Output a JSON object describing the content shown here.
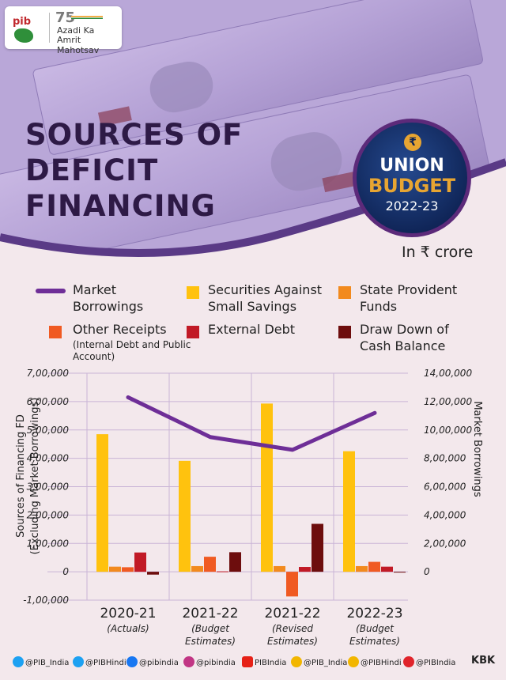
{
  "header": {
    "pib_logo": "pib",
    "amrit_number": "75",
    "amrit_line1": "Azadi Ka",
    "amrit_line2": "Amrit Mahotsav"
  },
  "title": {
    "line1": "SOURCES OF",
    "line2": "DEFICIT",
    "line3": "FINANCING"
  },
  "badge": {
    "icon": "rupee-icon",
    "line1": "UNION",
    "line2": "BUDGET",
    "line3": "2022-23"
  },
  "unit": "In ₹ crore",
  "legend": [
    {
      "label": "Market Borrowings",
      "note": "",
      "color": "#6e2e97",
      "kind": "line"
    },
    {
      "label": "Securities Against Small Savings",
      "note": "",
      "color": "#ffc20e",
      "kind": "box"
    },
    {
      "label": "State Provident Funds",
      "note": "",
      "color": "#f28a1e",
      "kind": "box"
    },
    {
      "label": "Other Receipts",
      "note": "(Internal Debt and Public Account)",
      "color": "#f05a22",
      "kind": "box"
    },
    {
      "label": "External Debt",
      "note": "",
      "color": "#c11a26",
      "kind": "box"
    },
    {
      "label": "Draw Down of Cash Balance",
      "note": "",
      "color": "#6d0d0d",
      "kind": "box"
    }
  ],
  "chart_data": {
    "type": "bar",
    "categories": [
      "2020-21",
      "2021-22",
      "2021-22",
      "2022-23"
    ],
    "category_notes": [
      "(Actuals)",
      "(Budget Estimates)",
      "(Revised Estimates)",
      "(Budget Estimates)"
    ],
    "ylabel": "Sources of Financing FD",
    "ylabel_sub": "(Excluding Market Borrowings)",
    "y2label": "Market Borrowings",
    "ylim": [
      -100000,
      700000
    ],
    "y2lim": [
      0,
      1400000
    ],
    "yticks": [
      "7,00,000",
      "6,00,000",
      "5,00,000",
      "4,00,000",
      "3,00,000",
      "2,00,000",
      "1,00,000",
      "0",
      "-1,00,000"
    ],
    "y2ticks": [
      "14,00,000",
      "12,00,000",
      "10,00,000",
      "8,00,000",
      "6,00,000",
      "4,00,000",
      "2,00,000",
      "0"
    ],
    "series": [
      {
        "name": "Securities Against Small Savings",
        "color": "#ffc20e",
        "values": [
          485000,
          391000,
          593000,
          425000
        ]
      },
      {
        "name": "State Provident Funds",
        "color": "#f28a1e",
        "values": [
          18000,
          20000,
          20000,
          20000
        ]
      },
      {
        "name": "Other Receipts",
        "color": "#f05a22",
        "values": [
          16000,
          53000,
          -87000,
          35000
        ]
      },
      {
        "name": "External Debt",
        "color": "#c11a26",
        "values": [
          68000,
          1500,
          17000,
          18000
        ]
      },
      {
        "name": "Draw Down of Cash Balance",
        "color": "#6d0d0d",
        "values": [
          -10000,
          69000,
          169000,
          -1000
        ]
      },
      {
        "name": "Market Borrowings",
        "color": "#6e2e97",
        "axis": "right",
        "kind": "line",
        "values": [
          1230000,
          950000,
          860000,
          1120000
        ]
      }
    ],
    "grid": true
  },
  "footer": {
    "handles": [
      {
        "icon": "twitter-icon",
        "text": "@PIB_India",
        "color": "#1da1f2"
      },
      {
        "icon": "twitter-icon",
        "text": "@PIBHindi",
        "color": "#1da1f2"
      },
      {
        "icon": "facebook-icon",
        "text": "@pibindia",
        "color": "#1877f2"
      },
      {
        "icon": "instagram-icon",
        "text": "@pibindia",
        "color": "#c13584"
      },
      {
        "icon": "youtube-icon",
        "text": "PIBIndia",
        "color": "#e62117"
      },
      {
        "icon": "koo-icon",
        "text": "@PIB_India",
        "color": "#f2b600"
      },
      {
        "icon": "koo-icon",
        "text": "@PIBHindi",
        "color": "#f2b600"
      },
      {
        "icon": "sharechat-icon",
        "text": "@PIBIndia",
        "color": "#e0242b"
      }
    ],
    "signature": "KBK"
  }
}
